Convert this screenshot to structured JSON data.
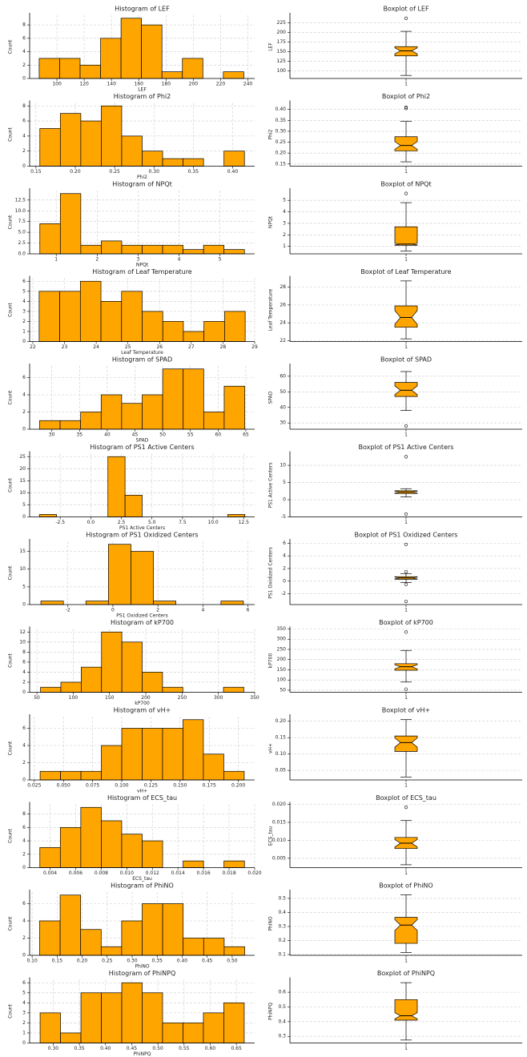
{
  "chart_data": [
    {
      "type": "histogram",
      "title": "Histogram of LEF",
      "xlabel": "LEF",
      "ylabel": "Count",
      "color": "#ffa500",
      "grid": true,
      "bins": [
        87,
        102,
        117,
        132,
        147,
        162,
        177,
        192,
        207,
        222,
        237
      ],
      "counts": [
        3,
        3,
        2,
        6,
        9,
        8,
        1,
        3,
        0,
        1
      ],
      "xlim": [
        80,
        245
      ],
      "xticks": [
        100,
        120,
        140,
        160,
        180,
        200,
        220,
        240
      ],
      "ylim": [
        0,
        9.45
      ],
      "yticks": [
        0,
        2,
        4,
        6,
        8
      ]
    },
    {
      "type": "box",
      "title": "Boxplot of LEF",
      "ylabel": "LEF",
      "color": "#ffa500",
      "grid": true,
      "notch": true,
      "categories": [
        "1"
      ],
      "boxes": [
        {
          "whislo": 88,
          "q1": 139,
          "med": 152,
          "q3": 163,
          "whishi": 203,
          "fliers": [
            237
          ]
        }
      ],
      "ylim": [
        80,
        245
      ],
      "yticks": [
        100,
        125,
        150,
        175,
        200,
        225
      ]
    },
    {
      "type": "histogram",
      "title": "Histogram of Phi2",
      "xlabel": "Phi2",
      "ylabel": "Count",
      "color": "#ffa500",
      "grid": true,
      "bins": [
        0.155,
        0.181,
        0.207,
        0.233,
        0.259,
        0.285,
        0.311,
        0.337,
        0.363,
        0.389,
        0.415
      ],
      "counts": [
        5,
        7,
        6,
        8,
        4,
        2,
        1,
        1,
        0,
        2
      ],
      "xlim": [
        0.142,
        0.428
      ],
      "xticks": [
        0.15,
        {
          "value": 0.2,
          "label": "0.20"
        },
        0.25,
        {
          "value": 0.3,
          "label": "0.30"
        },
        0.35,
        {
          "value": 0.4,
          "label": "0.40"
        }
      ],
      "ylim": [
        0,
        8.4
      ],
      "yticks": [
        0,
        2,
        4,
        6,
        8
      ]
    },
    {
      "type": "box",
      "title": "Boxplot of Phi2",
      "ylabel": "Phi2",
      "color": "#ffa500",
      "grid": true,
      "notch": true,
      "categories": [
        "1"
      ],
      "boxes": [
        {
          "whislo": 0.16,
          "q1": 0.21,
          "med": 0.235,
          "q3": 0.275,
          "whishi": 0.345,
          "fliers": [
            0.405,
            0.41
          ]
        }
      ],
      "ylim": [
        0.14,
        0.43
      ],
      "yticks": [
        0.15,
        {
          "value": 0.2,
          "label": "0.20"
        },
        0.25,
        {
          "value": 0.3,
          "label": "0.30"
        },
        0.35,
        {
          "value": 0.4,
          "label": "0.40"
        }
      ]
    },
    {
      "type": "histogram",
      "title": "Histogram of NPQt",
      "xlabel": "NPQt",
      "ylabel": "Count",
      "color": "#ffa500",
      "grid": true,
      "bins": [
        0.6,
        1.1,
        1.6,
        2.1,
        2.6,
        3.1,
        3.6,
        4.1,
        4.6,
        5.1,
        5.6
      ],
      "counts": [
        7,
        14,
        2,
        3,
        2,
        2,
        2,
        1,
        2,
        1
      ],
      "xlim": [
        0.35,
        5.85
      ],
      "xticks": [
        1,
        2,
        3,
        4,
        5
      ],
      "ylim": [
        0,
        14.7
      ],
      "yticks": [
        {
          "value": 0,
          "label": "0.0"
        },
        2.5,
        {
          "value": 5,
          "label": "5.0"
        },
        7.5,
        {
          "value": 10,
          "label": "10.0"
        },
        12.5
      ]
    },
    {
      "type": "box",
      "title": "Boxplot of NPQt",
      "ylabel": "NPQt",
      "color": "#ffa500",
      "grid": true,
      "notch": true,
      "categories": [
        "1"
      ],
      "boxes": [
        {
          "whislo": 0.6,
          "q1": 1.1,
          "med": 1.2,
          "q3": 2.7,
          "whishi": 4.8,
          "fliers": [
            5.6
          ]
        }
      ],
      "ylim": [
        0.35,
        5.85
      ],
      "yticks": [
        1,
        2,
        3,
        4,
        5
      ]
    },
    {
      "type": "histogram",
      "title": "Histogram of Leaf Temperature",
      "xlabel": "Leaf Temperature",
      "ylabel": "Count",
      "color": "#ffa500",
      "grid": true,
      "bins": [
        22.2,
        22.85,
        23.5,
        24.15,
        24.8,
        25.45,
        26.1,
        26.75,
        27.4,
        28.05,
        28.7
      ],
      "counts": [
        5,
        5,
        6,
        4,
        5,
        3,
        2,
        1,
        2,
        3
      ],
      "xlim": [
        21.9,
        29
      ],
      "xticks": [
        22,
        23,
        24,
        25,
        26,
        27,
        28,
        29
      ],
      "ylim": [
        0,
        6.3
      ],
      "yticks": [
        0,
        1,
        2,
        3,
        4,
        5,
        6
      ]
    },
    {
      "type": "box",
      "title": "Boxplot of Leaf Temperature",
      "ylabel": "Leaf Temperature",
      "color": "#ffa500",
      "grid": true,
      "notch": true,
      "categories": [
        "1"
      ],
      "boxes": [
        {
          "whislo": 22.2,
          "q1": 23.5,
          "med": 24.6,
          "q3": 25.9,
          "whishi": 28.7,
          "fliers": []
        }
      ],
      "ylim": [
        21.9,
        29
      ],
      "yticks": [
        22,
        24,
        26,
        28
      ]
    },
    {
      "type": "histogram",
      "title": "Histogram of SPAD",
      "xlabel": "SPAD",
      "ylabel": "Count",
      "color": "#ffa500",
      "grid": true,
      "bins": [
        27.8,
        31.5,
        35.2,
        38.9,
        42.6,
        46.3,
        50,
        53.7,
        57.4,
        61.1,
        64.8
      ],
      "counts": [
        1,
        1,
        2,
        4,
        3,
        4,
        7,
        7,
        2,
        5
      ],
      "xlim": [
        26,
        66.6
      ],
      "xticks": [
        30,
        35,
        40,
        45,
        50,
        55,
        60,
        65
      ],
      "ylim": [
        0,
        7.35
      ],
      "yticks": [
        0,
        2,
        4,
        6
      ]
    },
    {
      "type": "box",
      "title": "Boxplot of SPAD",
      "ylabel": "SPAD",
      "color": "#ffa500",
      "grid": true,
      "notch": true,
      "categories": [
        "1"
      ],
      "boxes": [
        {
          "whislo": 38,
          "q1": 47,
          "med": 51,
          "q3": 56,
          "whishi": 63,
          "fliers": [
            28
          ]
        }
      ],
      "ylim": [
        26,
        66.6
      ],
      "yticks": [
        30,
        40,
        50,
        60
      ]
    },
    {
      "type": "histogram",
      "title": "Histogram of PS1 Active Centers",
      "xlabel": "PS1 Active Centers",
      "ylabel": "Count",
      "color": "#ffa500",
      "grid": true,
      "bins": [
        -4.2,
        -2.8,
        -1.4,
        0,
        1.4,
        2.8,
        4.2,
        5.6,
        7,
        8.4,
        9.8,
        11.2,
        12.6
      ],
      "counts": [
        1,
        0,
        0,
        0,
        25,
        9,
        0,
        0,
        0,
        0,
        0,
        1
      ],
      "xlim": [
        -5,
        13.4
      ],
      "xticks": [
        -2.5,
        {
          "value": 0,
          "label": "0.0"
        },
        2.5,
        {
          "value": 5,
          "label": "5.0"
        },
        7.5,
        {
          "value": 10,
          "label": "10.0"
        },
        12.5
      ],
      "ylim": [
        0,
        26.25
      ],
      "yticks": [
        0,
        5,
        10,
        15,
        20,
        25
      ]
    },
    {
      "type": "box",
      "title": "Boxplot of PS1 Active Centers",
      "ylabel": "PS1 Active Centers",
      "color": "#ffa500",
      "grid": true,
      "notch": true,
      "categories": [
        "1"
      ],
      "boxes": [
        {
          "whislo": 0.8,
          "q1": 1.8,
          "med": 2.2,
          "q3": 2.6,
          "whishi": 3.2,
          "fliers": [
            12.5,
            -4.2
          ]
        }
      ],
      "ylim": [
        -5,
        13.4
      ],
      "yticks": [
        -5,
        0,
        5,
        10
      ]
    },
    {
      "type": "histogram",
      "title": "Histogram of PS1 Oxidized Centers",
      "xlabel": "PS1 Oxidized Centers",
      "ylabel": "Count",
      "color": "#ffa500",
      "grid": true,
      "bins": [
        -3.2,
        -2.2,
        -1.2,
        -0.2,
        0.8,
        1.8,
        2.8,
        3.8,
        4.8,
        5.8
      ],
      "counts": [
        1,
        0,
        1,
        17,
        15,
        1,
        0,
        0,
        1
      ],
      "xlim": [
        -3.7,
        6.3
      ],
      "xticks": [
        -2,
        0,
        2,
        4,
        6
      ],
      "ylim": [
        0,
        17.85
      ],
      "yticks": [
        0,
        5,
        10,
        15
      ]
    },
    {
      "type": "box",
      "title": "Boxplot of PS1 Oxidized Centers",
      "ylabel": "PS1 Oxidized Centers",
      "color": "#ffa500",
      "grid": true,
      "notch": true,
      "categories": [
        "1"
      ],
      "boxes": [
        {
          "whislo": -0.2,
          "q1": 0.3,
          "med": 0.5,
          "q3": 0.7,
          "whishi": 1.2,
          "fliers": [
            5.8,
            1.5,
            -0.5,
            -3.2
          ]
        }
      ],
      "ylim": [
        -3.7,
        6.3
      ],
      "yticks": [
        -2,
        0,
        2,
        4,
        6
      ]
    },
    {
      "type": "histogram",
      "title": "Histogram of kP700",
      "xlabel": "kP700",
      "ylabel": "Count",
      "color": "#ffa500",
      "grid": true,
      "bins": [
        55,
        83,
        111,
        139,
        167,
        195,
        223,
        251,
        279,
        307,
        335
      ],
      "counts": [
        1,
        2,
        5,
        12,
        10,
        4,
        1,
        0,
        0,
        1
      ],
      "xlim": [
        40,
        350
      ],
      "xticks": [
        50,
        100,
        150,
        200,
        250,
        300,
        350
      ],
      "ylim": [
        0,
        12.6
      ],
      "yticks": [
        0,
        2,
        4,
        6,
        8,
        10,
        12
      ]
    },
    {
      "type": "box",
      "title": "Boxplot of kP700",
      "ylabel": "kP700",
      "color": "#ffa500",
      "grid": true,
      "notch": true,
      "categories": [
        "1"
      ],
      "boxes": [
        {
          "whislo": 90,
          "q1": 148,
          "med": 165,
          "q3": 180,
          "whishi": 245,
          "fliers": [
            55,
            335
          ]
        }
      ],
      "ylim": [
        40,
        350
      ],
      "yticks": [
        50,
        100,
        150,
        200,
        250,
        300,
        350
      ]
    },
    {
      "type": "histogram",
      "title": "Histogram of vH+",
      "xlabel": "vH+",
      "ylabel": "Count",
      "color": "#ffa500",
      "grid": true,
      "bins": [
        0.03,
        0.0475,
        0.065,
        0.0825,
        0.1,
        0.1175,
        0.135,
        0.1525,
        0.17,
        0.1875,
        0.205
      ],
      "counts": [
        1,
        1,
        1,
        4,
        6,
        6,
        6,
        7,
        3,
        1
      ],
      "xlim": [
        0.021,
        0.214
      ],
      "xticks": [
        0.025,
        {
          "value": 0.05,
          "label": "0.050"
        },
        0.075,
        {
          "value": 0.1,
          "label": "0.100"
        },
        0.125,
        {
          "value": 0.15,
          "label": "0.150"
        },
        0.175,
        {
          "value": 0.2,
          "label": "0.200"
        }
      ],
      "ylim": [
        0,
        7.35
      ],
      "yticks": [
        0,
        2,
        4,
        6
      ]
    },
    {
      "type": "box",
      "title": "Boxplot of vH+",
      "ylabel": "vH+",
      "color": "#ffa500",
      "grid": true,
      "notch": true,
      "categories": [
        "1"
      ],
      "boxes": [
        {
          "whislo": 0.03,
          "q1": 0.108,
          "med": 0.135,
          "q3": 0.155,
          "whishi": 0.205,
          "fliers": []
        }
      ],
      "ylim": [
        0.021,
        0.214
      ],
      "yticks": [
        0.05,
        {
          "value": 0.1,
          "label": "0.10"
        },
        0.15,
        {
          "value": 0.2,
          "label": "0.20"
        }
      ]
    },
    {
      "type": "histogram",
      "title": "Histogram of ECS_tau",
      "xlabel": "ECS_tau",
      "ylabel": "Count",
      "color": "#ffa500",
      "grid": true,
      "bins": [
        0.0032,
        0.0048,
        0.0064,
        0.008,
        0.0096,
        0.0112,
        0.0128,
        0.0144,
        0.016,
        0.0176,
        0.0192
      ],
      "counts": [
        3,
        6,
        9,
        7,
        5,
        4,
        0,
        1,
        0,
        1
      ],
      "xlim": [
        0.0024,
        0.02
      ],
      "xticks": [
        0.004,
        0.006,
        0.008,
        {
          "value": 0.01,
          "label": "0.010"
        },
        0.012,
        0.014,
        0.016,
        0.018,
        {
          "value": 0.02,
          "label": "0.020"
        }
      ],
      "ylim": [
        0,
        9.45
      ],
      "yticks": [
        0,
        2,
        4,
        6,
        8
      ]
    },
    {
      "type": "box",
      "title": "Boxplot of ECS_tau",
      "ylabel": "ECS_tau",
      "color": "#ffa500",
      "grid": true,
      "notch": true,
      "categories": [
        "1"
      ],
      "boxes": [
        {
          "whislo": 0.0032,
          "q1": 0.0077,
          "med": 0.0092,
          "q3": 0.0108,
          "whishi": 0.0155,
          "fliers": [
            0.0192
          ]
        }
      ],
      "ylim": [
        0.0024,
        0.02
      ],
      "yticks": [
        0.005,
        {
          "value": 0.01,
          "label": "0.010"
        },
        0.015,
        {
          "value": 0.02,
          "label": "0.020"
        }
      ]
    },
    {
      "type": "histogram",
      "title": "Histogram of PhiNO",
      "xlabel": "PhiNO",
      "ylabel": "Count",
      "color": "#ffa500",
      "grid": true,
      "bins": [
        0.115,
        0.156,
        0.197,
        0.238,
        0.279,
        0.32,
        0.361,
        0.402,
        0.443,
        0.484,
        0.525
      ],
      "counts": [
        4,
        7,
        3,
        1,
        4,
        6,
        6,
        2,
        2,
        1
      ],
      "xlim": [
        0.095,
        0.545
      ],
      "xticks": [
        {
          "value": 0.1,
          "label": "0.10"
        },
        0.15,
        {
          "value": 0.2,
          "label": "0.20"
        },
        0.25,
        {
          "value": 0.3,
          "label": "0.30"
        },
        0.35,
        {
          "value": 0.4,
          "label": "0.40"
        },
        0.45,
        {
          "value": 0.5,
          "label": "0.50"
        }
      ],
      "ylim": [
        0,
        7.35
      ],
      "yticks": [
        0,
        2,
        4,
        6
      ]
    },
    {
      "type": "box",
      "title": "Boxplot of PhiNO",
      "ylabel": "PhiNO",
      "color": "#ffa500",
      "grid": true,
      "notch": true,
      "categories": [
        "1"
      ],
      "boxes": [
        {
          "whislo": 0.115,
          "q1": 0.18,
          "med": 0.31,
          "q3": 0.365,
          "whishi": 0.525,
          "fliers": []
        }
      ],
      "ylim": [
        0.095,
        0.545
      ],
      "yticks": [
        0.1,
        0.2,
        0.3,
        0.4,
        0.5
      ]
    },
    {
      "type": "histogram",
      "title": "Histogram of PhiNPQ",
      "xlabel": "PhiNPQ",
      "ylabel": "Count",
      "color": "#ffa500",
      "grid": true,
      "bins": [
        0.275,
        0.314,
        0.353,
        0.392,
        0.431,
        0.47,
        0.509,
        0.548,
        0.587,
        0.626,
        0.665
      ],
      "counts": [
        3,
        1,
        5,
        5,
        6,
        5,
        2,
        2,
        3,
        4
      ],
      "xlim": [
        0.255,
        0.685
      ],
      "xticks": [
        {
          "value": 0.3,
          "label": "0.30"
        },
        0.35,
        {
          "value": 0.4,
          "label": "0.40"
        },
        0.45,
        {
          "value": 0.5,
          "label": "0.50"
        },
        0.55,
        {
          "value": 0.6,
          "label": "0.60"
        },
        0.65
      ],
      "ylim": [
        0,
        6.3
      ],
      "yticks": [
        0,
        1,
        2,
        3,
        4,
        5,
        6
      ]
    },
    {
      "type": "box",
      "title": "Boxplot of PhiNPQ",
      "ylabel": "PhiNPQ",
      "color": "#ffa500",
      "grid": true,
      "notch": true,
      "categories": [
        "1"
      ],
      "boxes": [
        {
          "whislo": 0.275,
          "q1": 0.41,
          "med": 0.44,
          "q3": 0.55,
          "whishi": 0.665,
          "fliers": []
        }
      ],
      "ylim": [
        0.255,
        0.685
      ],
      "yticks": [
        0.3,
        0.4,
        0.5,
        0.6
      ]
    }
  ]
}
